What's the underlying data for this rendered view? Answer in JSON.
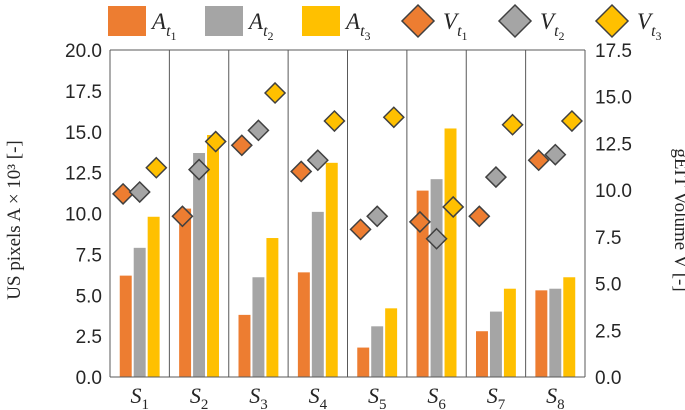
{
  "chart_data": {
    "type": "bar",
    "categories": [
      "S1",
      "S2",
      "S3",
      "S4",
      "S5",
      "S6",
      "S7",
      "S8"
    ],
    "category_labels": [
      {
        "base": "S",
        "sub": "1"
      },
      {
        "base": "S",
        "sub": "2"
      },
      {
        "base": "S",
        "sub": "3"
      },
      {
        "base": "S",
        "sub": "4"
      },
      {
        "base": "S",
        "sub": "5"
      },
      {
        "base": "S",
        "sub": "6"
      },
      {
        "base": "S",
        "sub": "7"
      },
      {
        "base": "S",
        "sub": "8"
      }
    ],
    "ylabel_left": "US pixels A × 10³ [-]",
    "ylabel_right": "gEIT Volume V [-]",
    "ylim_left": [
      0,
      20
    ],
    "ylim_right": [
      0,
      17.5
    ],
    "yticks_left": [
      "0.0",
      "2.5",
      "5.0",
      "7.5",
      "10.0",
      "12.5",
      "15.0",
      "17.5",
      "20.0"
    ],
    "yticks_right": [
      "0.0",
      "2.5",
      "5.0",
      "7.5",
      "10.0",
      "12.5",
      "15.0",
      "17.5"
    ],
    "grid": false,
    "category_separators": true,
    "legend_position": "top",
    "bar_series": [
      {
        "name": "A_t1",
        "label_base": "A",
        "label_sub": "t",
        "label_subsub": "1",
        "color": "#ED7D31",
        "values": [
          6.2,
          10.3,
          3.8,
          6.4,
          1.8,
          11.4,
          2.8,
          5.3
        ]
      },
      {
        "name": "A_t2",
        "label_base": "A",
        "label_sub": "t",
        "label_subsub": "2",
        "color": "#A5A5A5",
        "values": [
          7.9,
          13.7,
          6.1,
          10.1,
          3.1,
          12.1,
          4.0,
          5.4
        ]
      },
      {
        "name": "A_t3",
        "label_base": "A",
        "label_sub": "t",
        "label_subsub": "3",
        "color": "#FFC000",
        "values": [
          9.8,
          14.8,
          8.5,
          13.1,
          4.2,
          15.2,
          5.4,
          6.1
        ]
      }
    ],
    "marker_series": [
      {
        "name": "V_t1",
        "label_base": "V",
        "label_sub": "t",
        "label_subsub": "1",
        "color": "#ED7D31",
        "marker": "diamond",
        "values": [
          9.8,
          8.6,
          12.4,
          11.0,
          7.9,
          8.3,
          8.6,
          11.6
        ]
      },
      {
        "name": "V_t2",
        "label_base": "V",
        "label_sub": "t",
        "label_subsub": "2",
        "color": "#A5A5A5",
        "marker": "diamond",
        "values": [
          9.9,
          11.1,
          13.2,
          11.6,
          8.6,
          7.4,
          10.7,
          11.9
        ]
      },
      {
        "name": "V_t3",
        "label_base": "V",
        "label_sub": "t",
        "label_subsub": "3",
        "color": "#FFC000",
        "marker": "diamond",
        "values": [
          11.2,
          12.6,
          15.2,
          13.7,
          13.9,
          9.1,
          13.5,
          13.7
        ]
      }
    ]
  }
}
